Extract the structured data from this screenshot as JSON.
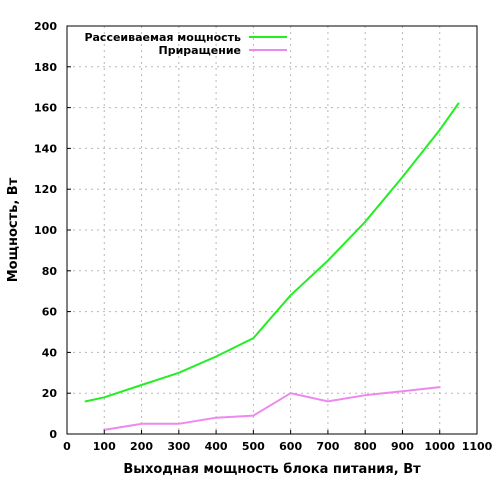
{
  "chart_data": {
    "type": "line",
    "title": "",
    "xlabel": "Выходная мощность блока питания, Вт",
    "ylabel": "Мощность, Вт",
    "xlim": [
      0,
      1100
    ],
    "ylim": [
      0,
      200
    ],
    "x_ticks": [
      0,
      100,
      200,
      300,
      400,
      500,
      600,
      700,
      800,
      900,
      1000,
      1100
    ],
    "y_ticks": [
      0,
      20,
      40,
      60,
      80,
      100,
      120,
      140,
      160,
      180,
      200
    ],
    "grid": true,
    "legend_position": "top-left",
    "series": [
      {
        "name": "Рассеиваемая мощность",
        "color": "#22ee22",
        "x": [
          50,
          100,
          200,
          300,
          400,
          500,
          600,
          700,
          800,
          900,
          1000,
          1050
        ],
        "y": [
          16,
          18,
          24,
          30,
          38,
          47,
          68,
          85,
          104,
          126,
          149,
          162
        ]
      },
      {
        "name": "Приращение",
        "color": "#ee88ee",
        "x": [
          100,
          200,
          300,
          400,
          500,
          600,
          700,
          800,
          900,
          1000
        ],
        "y": [
          2,
          5,
          5,
          8,
          9,
          20,
          16,
          19,
          21,
          23
        ]
      }
    ]
  }
}
